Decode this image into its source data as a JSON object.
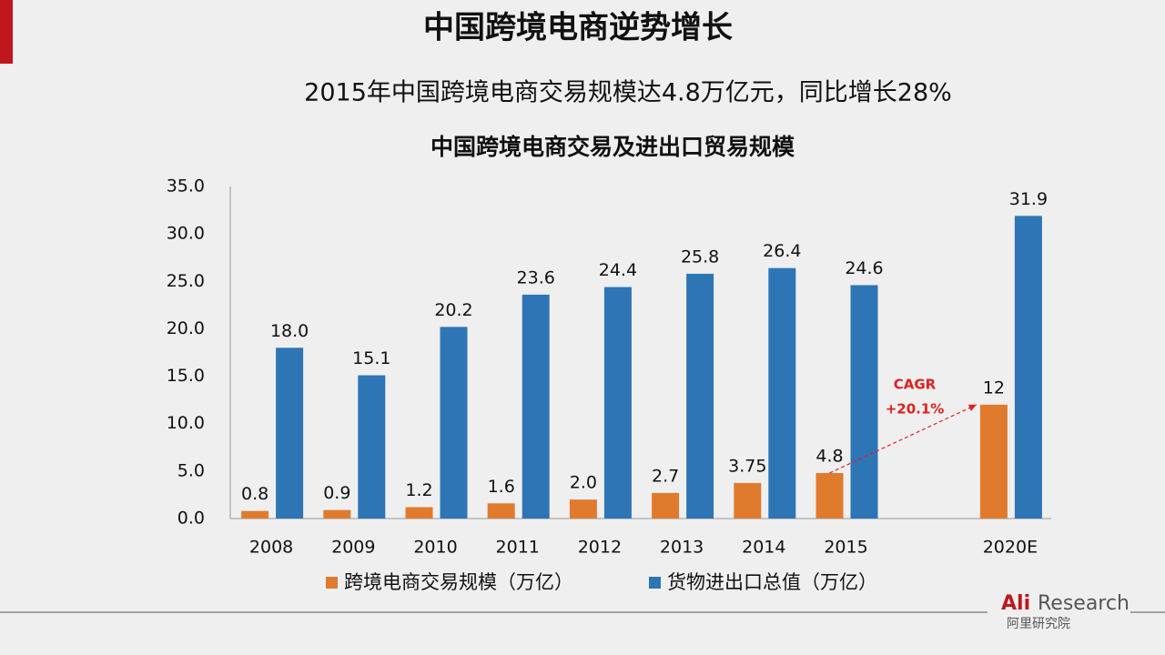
{
  "slide": {
    "title": "中国跨境电商逆势增长",
    "subtitle": "2015年中国跨境电商交易规模达4.8万亿元，同比增长28%"
  },
  "logo": {
    "brand_a": "Ali",
    "brand_b": "Research",
    "brand_cn": "阿里研究院"
  },
  "chart_data": {
    "type": "bar",
    "title": "中国跨境电商交易及进出口贸易规模",
    "categories": [
      "2008",
      "2009",
      "2010",
      "2011",
      "2012",
      "2013",
      "2014",
      "2015",
      null,
      "2020E"
    ],
    "series": [
      {
        "name": "跨境电商交易规模（万亿）",
        "color": "#e07b2e",
        "values": [
          0.8,
          0.9,
          1.2,
          1.6,
          2.0,
          2.7,
          3.75,
          4.8,
          null,
          12
        ],
        "value_labels": [
          "0.8",
          "0.9",
          "1.2",
          "1.6",
          "2.0",
          "2.7",
          "3.75",
          "4.8",
          null,
          "12"
        ]
      },
      {
        "name": "货物进出口总值（万亿）",
        "color": "#2e75b6",
        "values": [
          18.0,
          15.1,
          20.2,
          23.6,
          24.4,
          25.8,
          26.4,
          24.6,
          null,
          31.9
        ],
        "value_labels": [
          "18.0",
          "15.1",
          "20.2",
          "23.6",
          "24.4",
          "25.8",
          "26.4",
          "24.6",
          null,
          "31.9"
        ]
      }
    ],
    "ylim": [
      0,
      35
    ],
    "yticks": [
      {
        "value": 0,
        "label": "0.0"
      },
      {
        "value": 5,
        "label": "5.0"
      },
      {
        "value": 10,
        "label": "10.0"
      },
      {
        "value": 15,
        "label": "15.0"
      },
      {
        "value": 20,
        "label": "20.0"
      },
      {
        "value": 25,
        "label": "25.0"
      },
      {
        "value": 30,
        "label": "30.0"
      },
      {
        "value": 35,
        "label": "35.0"
      }
    ],
    "grid": false,
    "legend": "bottom",
    "annotations": [
      "CAGR",
      "+20.1%"
    ]
  }
}
